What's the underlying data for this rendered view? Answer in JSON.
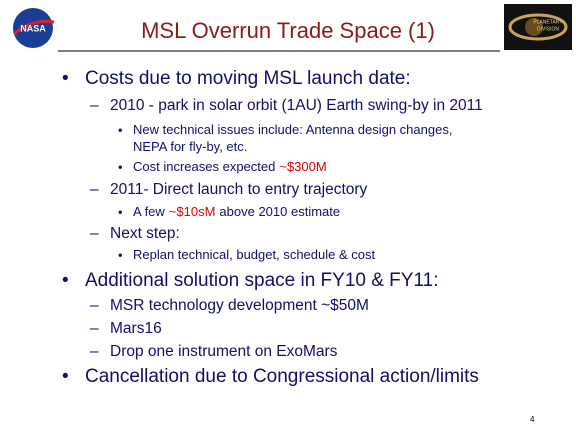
{
  "header": {
    "title": "MSL Overrun Trade Space (1)",
    "left_logo": "NASA",
    "right_logo": [
      "PLANETARY",
      "DIVISION"
    ]
  },
  "bullets": [
    {
      "level": 1,
      "lines": [
        "Costs due to moving MSL launch date:"
      ]
    },
    {
      "level": 2,
      "lines": [
        "2010 - park in solar orbit (1AU) Earth swing-by in 2011"
      ]
    },
    {
      "level": 3,
      "lines": [
        "New technical issues include: Antenna design changes,",
        "NEPA for fly-by, etc."
      ]
    },
    {
      "level": 3,
      "lines": [
        "Cost increases expected"
      ],
      "highlight": "~$300M"
    },
    {
      "level": 2,
      "lines": [
        "2011- Direct launch to entry trajectory"
      ]
    },
    {
      "level": 3,
      "lines": [
        "A few"
      ],
      "highlight": "~$10sM",
      "after": "above 2010 estimate"
    },
    {
      "level": 2,
      "lines": [
        "Next step:"
      ]
    },
    {
      "level": 3,
      "lines": [
        "Replan technical, budget, schedule & cost"
      ]
    },
    {
      "level": 1,
      "lines": [
        "Additional solution space in FY10 & FY11:"
      ]
    },
    {
      "level": 2,
      "lines": [
        "MSR technology development ~$50M"
      ]
    },
    {
      "level": 2,
      "lines": [
        "Mars16"
      ]
    },
    {
      "level": 2,
      "lines": [
        "Drop one instrument on ExoMars"
      ]
    },
    {
      "level": 1,
      "lines": [
        "Cancellation due to Congressional action/limits"
      ]
    }
  ],
  "page_number": "4"
}
